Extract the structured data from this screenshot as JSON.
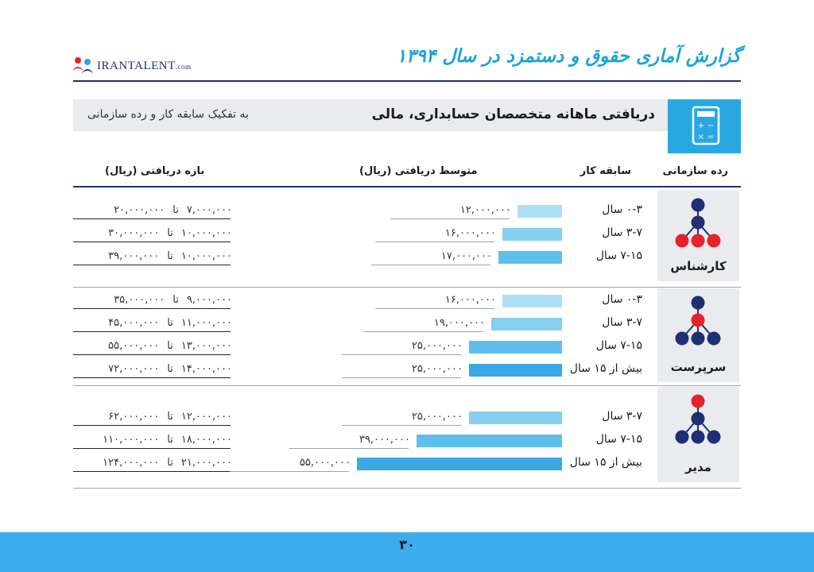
{
  "brand": {
    "name": "IRANTALENT",
    "domain": ".com"
  },
  "report_title": "گزارش آماری حقوق و دستمزد در سال ۱۳۹۴",
  "subheader": {
    "title": "دریافتی ماهانه متخصصان حسابداری، مالی",
    "note": "به تفکیک سابقه کار و رده سازمانی"
  },
  "colors": {
    "accent": "#29a8e0",
    "navy": "#1f2f73",
    "red": "#e8222b",
    "footer": "#3cacec"
  },
  "page_number": "۳۰",
  "chart_data": {
    "type": "bar",
    "orientation": "horizontal",
    "columns": {
      "grade": "رده سازمانی",
      "experience": "سابقه کار",
      "average": "متوسط دریافتی (ریال)",
      "range": "بازه دریافتی (ریال)"
    },
    "range_separator": "تا",
    "groups": [
      {
        "name": "کارشناس",
        "icon": "org-expert-icon",
        "rows": [
          {
            "experience": "۰-۳ سال",
            "average": 12000000,
            "average_label": "۱۲,۰۰۰,۰۰۰",
            "min": 7000000,
            "min_label": "۷,۰۰۰,۰۰۰",
            "max": 20000000,
            "max_label": "۲۰,۰۰۰,۰۰۰"
          },
          {
            "experience": "۳-۷ سال",
            "average": 16000000,
            "average_label": "۱۶,۰۰۰,۰۰۰",
            "min": 10000000,
            "min_label": "۱۰,۰۰۰,۰۰۰",
            "max": 30000000,
            "max_label": "۳۰,۰۰۰,۰۰۰"
          },
          {
            "experience": "۷-۱۵ سال",
            "average": 17000000,
            "average_label": "۱۷,۰۰۰,۰۰۰",
            "min": 10000000,
            "min_label": "۱۰,۰۰۰,۰۰۰",
            "max": 39000000,
            "max_label": "۳۹,۰۰۰,۰۰۰"
          }
        ]
      },
      {
        "name": "سرپرست",
        "icon": "org-supervisor-icon",
        "rows": [
          {
            "experience": "۰-۳ سال",
            "average": 16000000,
            "average_label": "۱۶,۰۰۰,۰۰۰",
            "min": 9000000,
            "min_label": "۹,۰۰۰,۰۰۰",
            "max": 35000000,
            "max_label": "۳۵,۰۰۰,۰۰۰"
          },
          {
            "experience": "۳-۷ سال",
            "average": 19000000,
            "average_label": "۱۹,۰۰۰,۰۰۰",
            "min": 11000000,
            "min_label": "۱۱,۰۰۰,۰۰۰",
            "max": 45000000,
            "max_label": "۴۵,۰۰۰,۰۰۰"
          },
          {
            "experience": "۷-۱۵ سال",
            "average": 25000000,
            "average_label": "۲۵,۰۰۰,۰۰۰",
            "min": 13000000,
            "min_label": "۱۳,۰۰۰,۰۰۰",
            "max": 55000000,
            "max_label": "۵۵,۰۰۰,۰۰۰"
          },
          {
            "experience": "بیش از ۱۵ سال",
            "average": 25000000,
            "average_label": "۲۵,۰۰۰,۰۰۰",
            "min": 14000000,
            "min_label": "۱۴,۰۰۰,۰۰۰",
            "max": 72000000,
            "max_label": "۷۲,۰۰۰,۰۰۰"
          }
        ]
      },
      {
        "name": "مدیر",
        "icon": "org-manager-icon",
        "rows": [
          {
            "experience": "۳-۷ سال",
            "average": 25000000,
            "average_label": "۲۵,۰۰۰,۰۰۰",
            "min": 12000000,
            "min_label": "۱۲,۰۰۰,۰۰۰",
            "max": 62000000,
            "max_label": "۶۲,۰۰۰,۰۰۰"
          },
          {
            "experience": "۷-۱۵ سال",
            "average": 39000000,
            "average_label": "۳۹,۰۰۰,۰۰۰",
            "min": 18000000,
            "min_label": "۱۸,۰۰۰,۰۰۰",
            "max": 110000000,
            "max_label": "۱۱۰,۰۰۰,۰۰۰"
          },
          {
            "experience": "بیش از ۱۵ سال",
            "average": 55000000,
            "average_label": "۵۵,۰۰۰,۰۰۰",
            "min": 21000000,
            "min_label": "۲۱,۰۰۰,۰۰۰",
            "max": 124000000,
            "max_label": "۱۲۴,۰۰۰,۰۰۰"
          }
        ]
      }
    ]
  }
}
